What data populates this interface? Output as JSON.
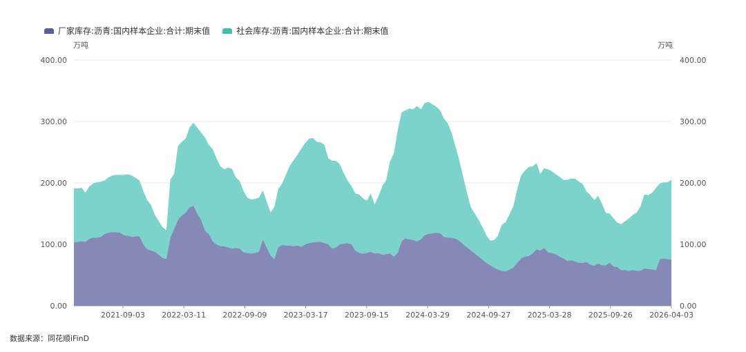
{
  "legend": [
    {
      "label": "厂家库存:沥青:国内样本企业:合计:期末值",
      "color": "#5b5e9c"
    },
    {
      "label": "社会库存:沥青:国内样本企业:合计:期末值",
      "color": "#3fbfb0"
    }
  ],
  "unit_left": "万吨",
  "unit_right": "万吨",
  "source": "数据来源：同花顺iFinD",
  "chart_data": {
    "type": "area",
    "stacked": true,
    "x_ticks": [
      "2021-09-03",
      "2022-03-11",
      "2022-09-09",
      "2023-03-17",
      "2023-09-15",
      "2024-03-29",
      "2024-09-27",
      "2025-03-28",
      "2025-09-26",
      "2026-04-03"
    ],
    "y_ticks": [
      "0.00",
      "100.00",
      "200.00",
      "300.00",
      "400.00"
    ],
    "ylim": [
      0,
      400
    ],
    "grid": true,
    "legend_position": "top-left",
    "series": [
      {
        "name": "厂家库存:沥青:国内样本企业:合计:期末值",
        "color": "#8589b8",
        "values": [
          103,
          104,
          105,
          104,
          109,
          111,
          111,
          112,
          117,
          119,
          120,
          120,
          119,
          115,
          114,
          112,
          113,
          113,
          100,
          92,
          90,
          88,
          83,
          78,
          76,
          110,
          125,
          140,
          147,
          152,
          160,
          163,
          150,
          140,
          122,
          117,
          105,
          100,
          97,
          97,
          95,
          93,
          94,
          93,
          87,
          86,
          85,
          86,
          88,
          108,
          95,
          82,
          76,
          95,
          99,
          98,
          98,
          97,
          98,
          96,
          100,
          102,
          103,
          104,
          104,
          102,
          100,
          93,
          95,
          100,
          101,
          102,
          100,
          90,
          86,
          85,
          86,
          88,
          85,
          86,
          83,
          84,
          85,
          80,
          86,
          105,
          110,
          108,
          107,
          105,
          108,
          115,
          117,
          118,
          119,
          118,
          112,
          111,
          111,
          109,
          106,
          100,
          95,
          90,
          85,
          80,
          75,
          70,
          66,
          62,
          59,
          57,
          56,
          59,
          62,
          70,
          77,
          80,
          81,
          85,
          92,
          90,
          94,
          87,
          86,
          84,
          80,
          77,
          73,
          74,
          72,
          70,
          70,
          71,
          67,
          65,
          69,
          66,
          66,
          70,
          64,
          63,
          58,
          58,
          57,
          58,
          57,
          57,
          61,
          60,
          59,
          58,
          76,
          77,
          76,
          75
        ]
      },
      {
        "name": "社会库存:沥青:国内样本企业:合计:期末值",
        "color": "#7bd3cb",
        "values": [
          88,
          87,
          87,
          80,
          85,
          88,
          90,
          90,
          87,
          90,
          92,
          93,
          94,
          98,
          100,
          100,
          95,
          91,
          87,
          80,
          74,
          60,
          55,
          50,
          47,
          95,
          90,
          120,
          120,
          120,
          130,
          135,
          140,
          142,
          152,
          145,
          150,
          140,
          130,
          125,
          130,
          130,
          115,
          110,
          100,
          90,
          88,
          88,
          88,
          80,
          75,
          70,
          85,
          95,
          100,
          115,
          130,
          140,
          148,
          160,
          165,
          170,
          170,
          163,
          162,
          160,
          140,
          143,
          141,
          130,
          115,
          102,
          95,
          93,
          95,
          90,
          85,
          95,
          80,
          92,
          112,
          120,
          150,
          168,
          200,
          210,
          208,
          213,
          213,
          220,
          212,
          215,
          215,
          210,
          205,
          200,
          193,
          186,
          170,
          150,
          130,
          110,
          88,
          70,
          65,
          60,
          53,
          45,
          40,
          45,
          55,
          75,
          80,
          90,
          100,
          120,
          135,
          140,
          145,
          142,
          140,
          125,
          130,
          135,
          133,
          130,
          130,
          128,
          132,
          133,
          135,
          132,
          128,
          115,
          113,
          107,
          110,
          100,
          85,
          80,
          78,
          72,
          75,
          80,
          85,
          90,
          95,
          105,
          120,
          120,
          125,
          134,
          123,
          124,
          125,
          130
        ]
      }
    ]
  }
}
